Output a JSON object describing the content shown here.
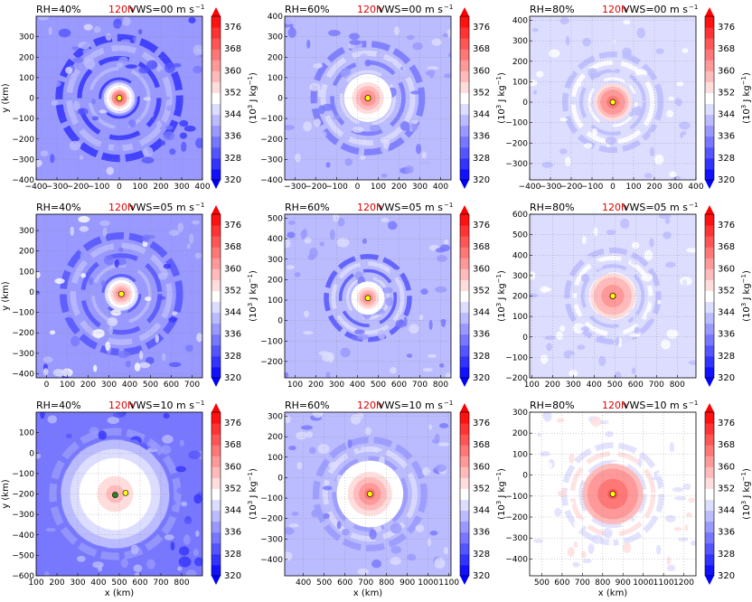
{
  "figure": {
    "colorbar": {
      "ticks": [
        "320",
        "328",
        "336",
        "344",
        "352",
        "360",
        "368",
        "376"
      ],
      "levels_min": 320,
      "levels_max": 380,
      "levels_step": 4,
      "label_main": "(10",
      "label_exp": "3",
      "label_unit": " J kg",
      "label_unit_exp": "−1",
      "label_close": ")",
      "colors": {
        "low": "#0000ff",
        "mid": "#ffffff",
        "high": "#ff0000"
      }
    },
    "marker_colors": {
      "yellow": "#ffff00",
      "green": "#228b22"
    }
  },
  "chart_data": [
    {
      "type": "heatmap",
      "rh": "RH=40%",
      "time": "120h",
      "vws": "VWS=00 m s",
      "vws_exp": "−1",
      "xlim": [
        -400,
        400
      ],
      "ylim": [
        -400,
        400
      ],
      "xticks": [
        "−400",
        "−300",
        "−200",
        "−100",
        "0",
        "100",
        "200",
        "300",
        "400"
      ],
      "xtick_vals": [
        -400,
        -300,
        -200,
        -100,
        0,
        100,
        200,
        300,
        400
      ],
      "yticks": [
        "300",
        "200",
        "100",
        "0",
        "−100",
        "−200",
        "−300",
        "−400"
      ],
      "ytick_vals": [
        300,
        200,
        100,
        0,
        -100,
        -200,
        -300,
        -400
      ],
      "ylabel": "y (km)",
      "xlabel": "",
      "center": [
        0,
        0
      ],
      "markers": [
        {
          "x": 0,
          "y": 0,
          "color": "yellow"
        }
      ],
      "style": {
        "ring_radius": 290,
        "ring_value": 326,
        "bg_value": 336,
        "core_radius": 75,
        "core_value": 372,
        "noise": 10
      }
    },
    {
      "type": "heatmap",
      "rh": "RH=60%",
      "time": "120h",
      "vws": "VWS=00 m s",
      "vws_exp": "−1",
      "xlim": [
        -350,
        450
      ],
      "ylim": [
        -400,
        400
      ],
      "xticks": [
        "−300",
        "−200",
        "−100",
        "0",
        "100",
        "200",
        "300",
        "400"
      ],
      "xtick_vals": [
        -300,
        -200,
        -100,
        0,
        100,
        200,
        300,
        400
      ],
      "yticks": [
        "400",
        "300",
        "200",
        "100",
        "0",
        "−100",
        "−200",
        "−300",
        "−400"
      ],
      "ytick_vals": [
        400,
        300,
        200,
        100,
        0,
        -100,
        -200,
        -300,
        -400
      ],
      "ylabel": "",
      "xlabel": "",
      "center": [
        50,
        0
      ],
      "markers": [
        {
          "x": 50,
          "y": 0,
          "color": "yellow"
        }
      ],
      "style": {
        "ring_radius": 260,
        "ring_value": 332,
        "bg_value": 340,
        "core_radius": 115,
        "core_value": 366,
        "noise": 8
      }
    },
    {
      "type": "heatmap",
      "rh": "RH=80%",
      "time": "120h",
      "vws": "VWS=00 m s",
      "vws_exp": "−1",
      "xlim": [
        -400,
        400
      ],
      "ylim": [
        -380,
        420
      ],
      "xticks": [
        "−400",
        "−300",
        "−200",
        "−100",
        "0",
        "100",
        "200",
        "300",
        "400"
      ],
      "xtick_vals": [
        -400,
        -300,
        -200,
        -100,
        0,
        100,
        200,
        300,
        400
      ],
      "yticks": [
        "400",
        "300",
        "200",
        "100",
        "0",
        "−100",
        "−200",
        "−300"
      ],
      "ytick_vals": [
        400,
        300,
        200,
        100,
        0,
        -100,
        -200,
        -300
      ],
      "ylabel": "",
      "xlabel": "",
      "center": [
        0,
        0
      ],
      "markers": [
        {
          "x": 0,
          "y": 0,
          "color": "yellow"
        }
      ],
      "style": {
        "ring_radius": 230,
        "ring_value": 340,
        "bg_value": 346,
        "core_radius": 90,
        "core_value": 370,
        "noise": 6
      }
    },
    {
      "type": "heatmap",
      "rh": "RH=40%",
      "time": "120h",
      "vws": "VWS=05 m s",
      "vws_exp": "−1",
      "xlim": [
        -50,
        750
      ],
      "ylim": [
        -420,
        380
      ],
      "xticks": [
        "0",
        "100",
        "200",
        "300",
        "400",
        "500",
        "600",
        "700"
      ],
      "xtick_vals": [
        0,
        100,
        200,
        300,
        400,
        500,
        600,
        700
      ],
      "yticks": [
        "300",
        "200",
        "100",
        "0",
        "−100",
        "−200",
        "−300",
        "−400"
      ],
      "ytick_vals": [
        300,
        200,
        100,
        0,
        -100,
        -200,
        -300,
        -400
      ],
      "ylabel": "y (km)",
      "xlabel": "",
      "center": [
        360,
        -10
      ],
      "markers": [
        {
          "x": 360,
          "y": -10,
          "color": "yellow"
        }
      ],
      "style": {
        "ring_radius": 280,
        "ring_value": 330,
        "bg_value": 338,
        "core_radius": 80,
        "core_value": 368,
        "noise": 12
      }
    },
    {
      "type": "heatmap",
      "rh": "RH=60%",
      "time": "120h",
      "vws": "VWS=05 m s",
      "vws_exp": "−1",
      "xlim": [
        50,
        850
      ],
      "ylim": [
        -280,
        520
      ],
      "xticks": [
        "100",
        "200",
        "300",
        "400",
        "500",
        "600",
        "700",
        "800"
      ],
      "xtick_vals": [
        100,
        200,
        300,
        400,
        500,
        600,
        700,
        800
      ],
      "yticks": [
        "500",
        "400",
        "300",
        "200",
        "100",
        "0",
        "−100",
        "−200"
      ],
      "ytick_vals": [
        500,
        400,
        300,
        200,
        100,
        0,
        -100,
        -200
      ],
      "ylabel": "",
      "xlabel": "",
      "center": [
        450,
        110
      ],
      "markers": [
        {
          "x": 450,
          "y": 110,
          "color": "yellow"
        }
      ],
      "style": {
        "ring_radius": 200,
        "ring_value": 330,
        "bg_value": 340,
        "core_radius": 80,
        "core_value": 366,
        "noise": 8
      }
    },
    {
      "type": "heatmap",
      "rh": "RH=80%",
      "time": "120h",
      "vws": "VWS=05 m s",
      "vws_exp": "−1",
      "xlim": [
        90,
        890
      ],
      "ylim": [
        -200,
        600
      ],
      "xticks": [
        "100",
        "200",
        "300",
        "400",
        "500",
        "600",
        "700",
        "800"
      ],
      "xtick_vals": [
        100,
        200,
        300,
        400,
        500,
        600,
        700,
        800
      ],
      "yticks": [
        "600",
        "500",
        "400",
        "300",
        "200",
        "100",
        "0",
        "−100",
        "−200"
      ],
      "ytick_vals": [
        600,
        500,
        400,
        300,
        200,
        100,
        0,
        -100,
        -200
      ],
      "ylabel": "",
      "xlabel": "",
      "center": [
        490,
        200
      ],
      "markers": [
        {
          "x": 490,
          "y": 200,
          "color": "yellow"
        }
      ],
      "style": {
        "ring_radius": 220,
        "ring_value": 340,
        "bg_value": 346,
        "core_radius": 110,
        "core_value": 366,
        "noise": 6
      }
    },
    {
      "type": "heatmap",
      "rh": "RH=40%",
      "time": "120h",
      "vws": "VWS=10 m s",
      "vws_exp": "−1",
      "xlim": [
        100,
        900
      ],
      "ylim": [
        -600,
        200
      ],
      "xticks": [
        "100",
        "200",
        "300",
        "400",
        "500",
        "600",
        "700",
        "800"
      ],
      "xtick_vals": [
        100,
        200,
        300,
        400,
        500,
        600,
        700,
        800
      ],
      "yticks": [
        "100",
        "0",
        "−100",
        "−200",
        "−300",
        "−400",
        "−500",
        "−600"
      ],
      "ytick_vals": [
        100,
        0,
        -100,
        -200,
        -300,
        -400,
        -500,
        -600
      ],
      "ylabel": "y (km)",
      "xlabel": "x (km)",
      "center": [
        480,
        -200
      ],
      "markers": [
        {
          "x": 480,
          "y": -205,
          "color": "green"
        },
        {
          "x": 530,
          "y": -195,
          "color": "yellow"
        }
      ],
      "style": {
        "ring_radius": 300,
        "ring_value": 336,
        "bg_value": 334,
        "core_radius": 260,
        "core_value": 358,
        "noise": 10
      }
    },
    {
      "type": "heatmap",
      "rh": "RH=60%",
      "time": "120h",
      "vws": "VWS=10 m s",
      "vws_exp": "−1",
      "xlim": [
        310,
        1110
      ],
      "ylim": [
        -480,
        320
      ],
      "xticks": [
        "400",
        "500",
        "600",
        "700",
        "800",
        "900",
        "1000",
        "1100"
      ],
      "xtick_vals": [
        400,
        500,
        600,
        700,
        800,
        900,
        1000,
        1100
      ],
      "yticks": [
        "300",
        "200",
        "100",
        "0",
        "−100",
        "−200",
        "−300",
        "−400"
      ],
      "ytick_vals": [
        300,
        200,
        100,
        0,
        -100,
        -200,
        -300,
        -400
      ],
      "ylabel": "",
      "xlabel": "x (km)",
      "center": [
        720,
        -80
      ],
      "markers": [
        {
          "x": 720,
          "y": -80,
          "color": "yellow"
        }
      ],
      "style": {
        "ring_radius": 260,
        "ring_value": 336,
        "bg_value": 340,
        "core_radius": 160,
        "core_value": 364,
        "noise": 8
      }
    },
    {
      "type": "heatmap",
      "rh": "RH=80%",
      "time": "120h",
      "vws": "VWS=10 m s",
      "vws_exp": "−1",
      "xlim": [
        440,
        1260
      ],
      "ylim": [
        -480,
        300
      ],
      "xticks": [
        "500",
        "600",
        "700",
        "800",
        "900",
        "1000",
        "1100",
        "1200"
      ],
      "xtick_vals": [
        500,
        600,
        700,
        800,
        900,
        1000,
        1100,
        1200
      ],
      "yticks": [
        "300",
        "200",
        "100",
        "0",
        "−100",
        "−200",
        "−300",
        "−400"
      ],
      "ytick_vals": [
        300,
        200,
        100,
        0,
        -100,
        -200,
        -300,
        -400
      ],
      "ylabel": "",
      "xlabel": "x (km)",
      "center": [
        850,
        -90
      ],
      "markers": [
        {
          "x": 850,
          "y": -90,
          "color": "yellow"
        }
      ],
      "style": {
        "ring_radius": 240,
        "ring_value": 346,
        "bg_value": 350,
        "core_radius": 150,
        "core_value": 368,
        "noise": 6
      }
    }
  ]
}
